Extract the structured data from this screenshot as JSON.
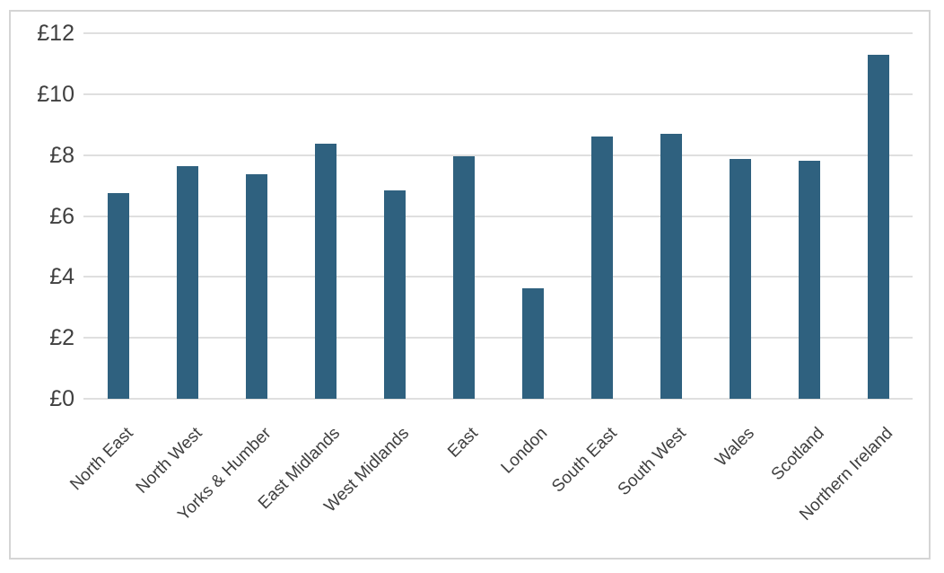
{
  "chart_data": {
    "type": "bar",
    "title": "",
    "xlabel": "",
    "ylabel": "",
    "categories": [
      "North East",
      "North West",
      "Yorks & Humber",
      "East Midlands",
      "West Midlands",
      "East",
      "London",
      "South East",
      "South West",
      "Wales",
      "Scotland",
      "Northern Ireland"
    ],
    "values": [
      6.76,
      7.64,
      7.37,
      8.38,
      6.83,
      7.96,
      3.64,
      8.6,
      8.69,
      7.87,
      7.8,
      11.28
    ],
    "ylim": [
      0,
      12
    ],
    "ytick_step": 2,
    "ytick_labels": [
      "£0",
      "£2",
      "£4",
      "£6",
      "£8",
      "£10",
      "£12"
    ],
    "currency_prefix": "£",
    "grid": "horizontal",
    "legend": false,
    "colors": {
      "bar": "#2F617F",
      "gridline": "#DFDFDF",
      "axis_text": "#3F3F3F",
      "frame_border": "#D5D5D5",
      "background": "#FFFFFF"
    }
  }
}
